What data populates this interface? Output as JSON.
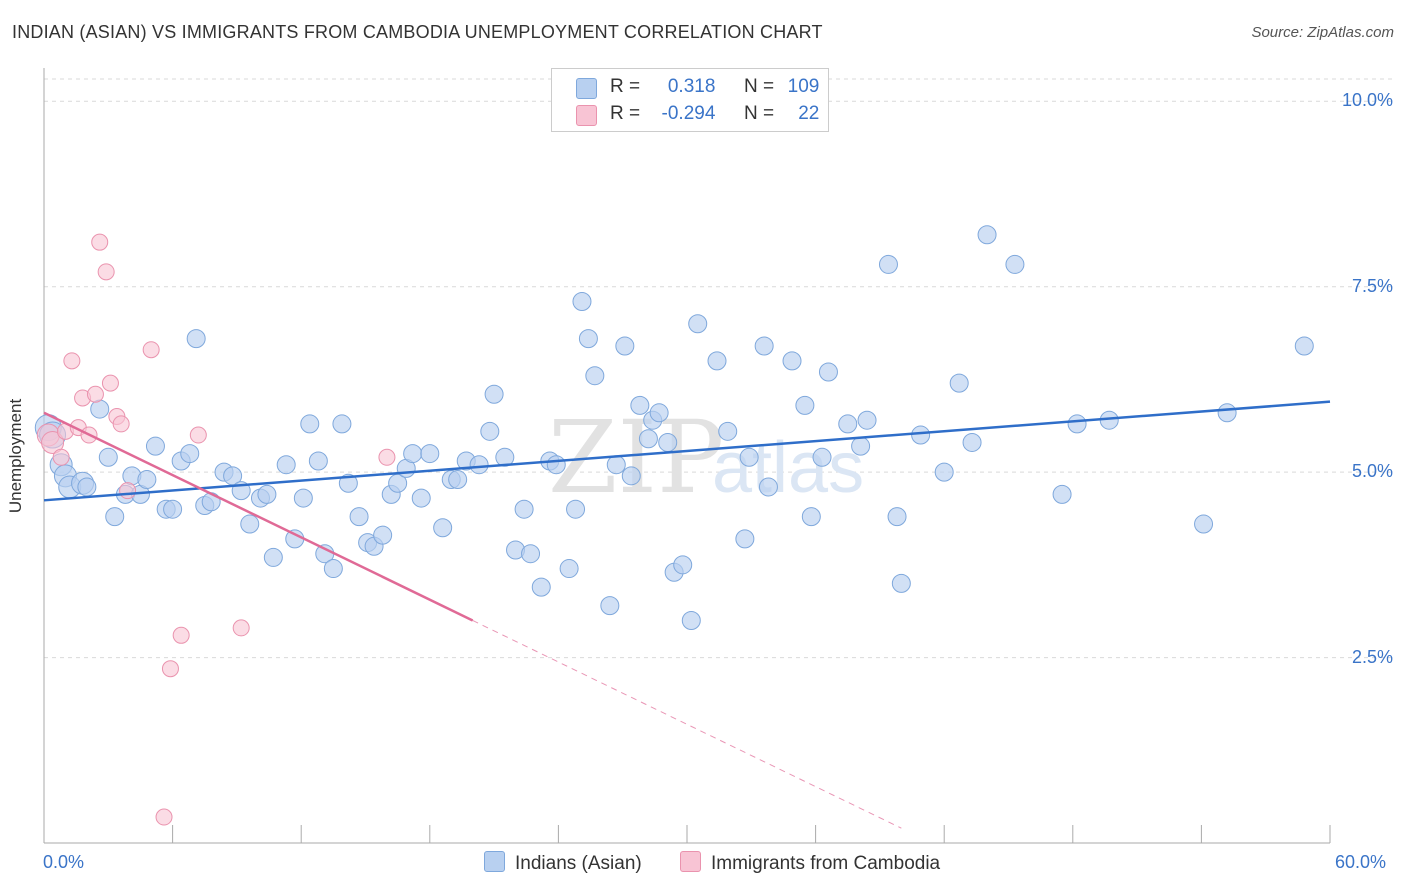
{
  "header": {
    "title": "INDIAN (ASIAN) VS IMMIGRANTS FROM CAMBODIA UNEMPLOYMENT CORRELATION CHART",
    "source": "Source: ZipAtlas.com"
  },
  "legend_top": {
    "rows": [
      {
        "r_label": "R =",
        "r_value": "0.318",
        "n_label": "N =",
        "n_value": "109"
      },
      {
        "r_label": "R =",
        "r_value": "-0.294",
        "n_label": "N =",
        "n_value": "22"
      }
    ]
  },
  "watermark": {
    "zip": "ZIP",
    "atlas": "atlas"
  },
  "colors": {
    "blue_fill": "#b8d0f0",
    "blue_stroke": "#7fa8dc",
    "blue_line": "#2f6ec9",
    "pink_fill": "#f8c4d4",
    "pink_stroke": "#ea93ae",
    "pink_line": "#e06a96",
    "tick_label": "#3a74c8",
    "grid": "#d9d9d9"
  },
  "chart_data": {
    "type": "scatter",
    "title": "INDIAN (ASIAN) VS IMMIGRANTS FROM CAMBODIA UNEMPLOYMENT CORRELATION CHART",
    "xlabel": "",
    "ylabel": "Unemployment",
    "xlim": [
      0,
      60
    ],
    "ylim": [
      0,
      10.3
    ],
    "x_tick_labels": {
      "left": "0.0%",
      "right": "60.0%"
    },
    "y_ticks": [
      2.5,
      5.0,
      7.5,
      10.0
    ],
    "y_tick_labels": [
      "2.5%",
      "5.0%",
      "7.5%",
      "10.0%"
    ],
    "grid": true,
    "legend_position": "top-center",
    "series": [
      {
        "name": "Indians (Asian)",
        "color": "#b8d0f0",
        "trend": {
          "x": [
            0,
            60
          ],
          "y": [
            4.62,
            5.95
          ]
        },
        "points": [
          [
            0.2,
            5.6
          ],
          [
            0.4,
            5.5
          ],
          [
            0.8,
            5.1
          ],
          [
            1.0,
            4.95
          ],
          [
            1.2,
            4.8
          ],
          [
            1.8,
            4.85
          ],
          [
            2.0,
            4.8
          ],
          [
            2.6,
            5.85
          ],
          [
            3.0,
            5.2
          ],
          [
            3.3,
            4.4
          ],
          [
            3.8,
            4.7
          ],
          [
            4.1,
            4.95
          ],
          [
            4.5,
            4.7
          ],
          [
            4.8,
            4.9
          ],
          [
            5.2,
            5.35
          ],
          [
            5.7,
            4.5
          ],
          [
            6.0,
            4.5
          ],
          [
            6.4,
            5.15
          ],
          [
            6.8,
            5.25
          ],
          [
            7.1,
            6.8
          ],
          [
            7.5,
            4.55
          ],
          [
            7.8,
            4.6
          ],
          [
            8.4,
            5.0
          ],
          [
            8.8,
            4.95
          ],
          [
            9.2,
            4.75
          ],
          [
            9.6,
            4.3
          ],
          [
            10.1,
            4.65
          ],
          [
            10.4,
            4.7
          ],
          [
            10.7,
            3.85
          ],
          [
            11.3,
            5.1
          ],
          [
            11.7,
            4.1
          ],
          [
            12.1,
            4.65
          ],
          [
            12.4,
            5.65
          ],
          [
            12.8,
            5.15
          ],
          [
            13.1,
            3.9
          ],
          [
            13.5,
            3.7
          ],
          [
            13.9,
            5.65
          ],
          [
            14.2,
            4.85
          ],
          [
            14.7,
            4.4
          ],
          [
            15.1,
            4.05
          ],
          [
            15.4,
            4.0
          ],
          [
            15.8,
            4.15
          ],
          [
            16.2,
            4.7
          ],
          [
            16.5,
            4.85
          ],
          [
            16.9,
            5.05
          ],
          [
            17.2,
            5.25
          ],
          [
            17.6,
            4.65
          ],
          [
            18.0,
            5.25
          ],
          [
            18.6,
            4.25
          ],
          [
            19.0,
            4.9
          ],
          [
            19.3,
            4.9
          ],
          [
            19.7,
            5.15
          ],
          [
            20.3,
            5.1
          ],
          [
            20.8,
            5.55
          ],
          [
            21.0,
            6.05
          ],
          [
            21.5,
            5.2
          ],
          [
            22.0,
            3.95
          ],
          [
            22.4,
            4.5
          ],
          [
            22.7,
            3.9
          ],
          [
            23.2,
            3.45
          ],
          [
            23.6,
            5.15
          ],
          [
            23.9,
            5.1
          ],
          [
            24.5,
            3.7
          ],
          [
            24.8,
            4.5
          ],
          [
            25.1,
            7.3
          ],
          [
            25.4,
            6.8
          ],
          [
            25.7,
            6.3
          ],
          [
            26.4,
            3.2
          ],
          [
            26.7,
            5.1
          ],
          [
            27.1,
            6.7
          ],
          [
            27.4,
            4.95
          ],
          [
            27.8,
            5.9
          ],
          [
            28.2,
            5.45
          ],
          [
            28.4,
            5.7
          ],
          [
            28.7,
            5.8
          ],
          [
            29.1,
            5.4
          ],
          [
            29.4,
            3.65
          ],
          [
            29.8,
            3.75
          ],
          [
            30.2,
            3.0
          ],
          [
            30.5,
            7.0
          ],
          [
            31.4,
            6.5
          ],
          [
            31.9,
            5.55
          ],
          [
            32.7,
            4.1
          ],
          [
            32.9,
            5.2
          ],
          [
            33.6,
            6.7
          ],
          [
            33.8,
            4.8
          ],
          [
            34.9,
            6.5
          ],
          [
            35.5,
            5.9
          ],
          [
            35.8,
            4.4
          ],
          [
            36.3,
            5.2
          ],
          [
            36.6,
            6.35
          ],
          [
            37.5,
            5.65
          ],
          [
            38.1,
            5.35
          ],
          [
            38.4,
            5.7
          ],
          [
            39.4,
            7.8
          ],
          [
            39.8,
            4.4
          ],
          [
            40.0,
            3.5
          ],
          [
            40.9,
            5.5
          ],
          [
            42.0,
            5.0
          ],
          [
            42.7,
            6.2
          ],
          [
            43.3,
            5.4
          ],
          [
            44.0,
            8.2
          ],
          [
            45.3,
            7.8
          ],
          [
            47.5,
            4.7
          ],
          [
            48.2,
            5.65
          ],
          [
            49.7,
            5.7
          ],
          [
            54.1,
            4.3
          ],
          [
            55.2,
            5.8
          ],
          [
            58.8,
            6.7
          ]
        ]
      },
      {
        "name": "Immigrants from Cambodia",
        "color": "#f8c4d4",
        "trend": {
          "x": [
            0,
            20
          ],
          "y": [
            5.8,
            3.0
          ]
        },
        "trend_dashed": {
          "x": [
            20,
            40
          ],
          "y": [
            3.0,
            0.2
          ]
        },
        "points": [
          [
            0.2,
            5.5
          ],
          [
            0.4,
            5.4
          ],
          [
            0.8,
            5.2
          ],
          [
            1.0,
            5.55
          ],
          [
            1.3,
            6.5
          ],
          [
            1.6,
            5.6
          ],
          [
            1.8,
            6.0
          ],
          [
            2.1,
            5.5
          ],
          [
            2.4,
            6.05
          ],
          [
            2.6,
            8.1
          ],
          [
            2.9,
            7.7
          ],
          [
            3.1,
            6.2
          ],
          [
            3.4,
            5.75
          ],
          [
            3.6,
            5.65
          ],
          [
            3.9,
            4.75
          ],
          [
            5.0,
            6.65
          ],
          [
            5.6,
            0.35
          ],
          [
            5.9,
            2.35
          ],
          [
            6.4,
            2.8
          ],
          [
            7.2,
            5.5
          ],
          [
            9.2,
            2.9
          ],
          [
            16.0,
            5.2
          ]
        ]
      }
    ]
  },
  "bottom_legend": {
    "items": [
      {
        "label": "Indians (Asian)"
      },
      {
        "label": "Immigrants from Cambodia"
      }
    ]
  }
}
